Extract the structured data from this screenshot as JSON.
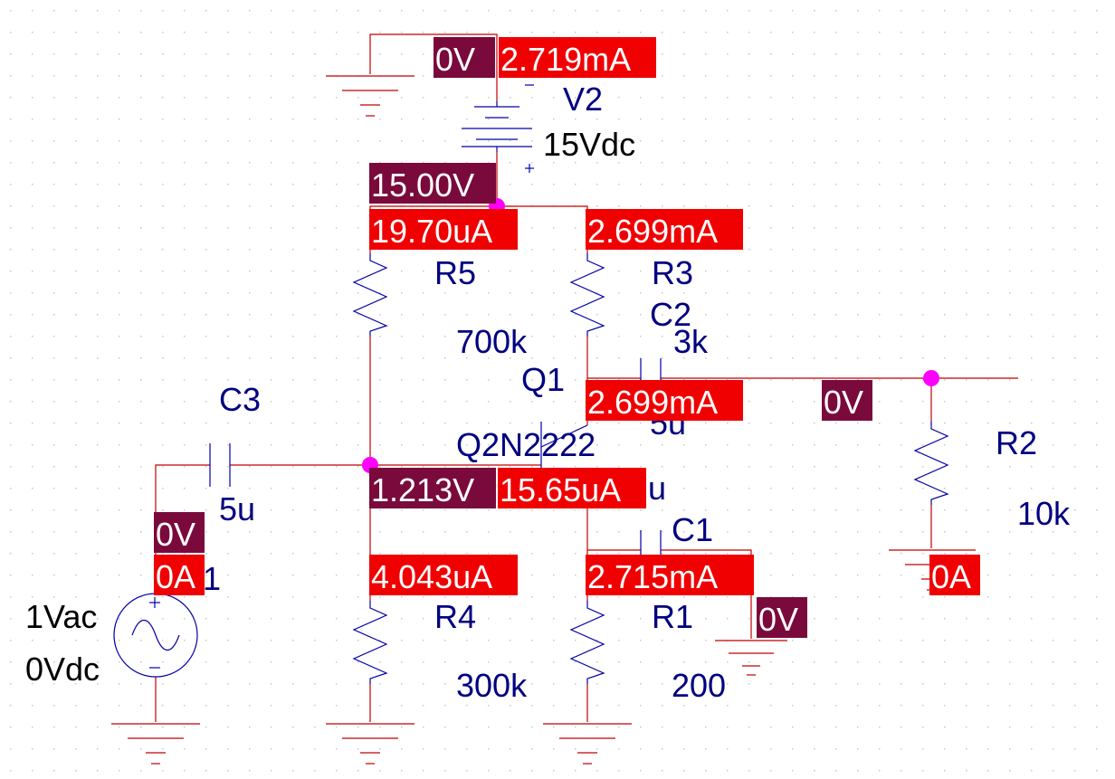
{
  "components": {
    "V2": {
      "name": "V2",
      "value": "15Vdc"
    },
    "R5": {
      "name": "R5",
      "value": "700k"
    },
    "R3": {
      "name": "R3",
      "value": "3k"
    },
    "R4": {
      "name": "R4",
      "value": "300k"
    },
    "R1": {
      "name": "R1",
      "value": "200"
    },
    "R2": {
      "name": "R2",
      "value": "10k"
    },
    "C3": {
      "name": "C3",
      "value": "5u"
    },
    "C2": {
      "name": "C2",
      "value": "5u"
    },
    "C1": {
      "name": "C1",
      "value": "u"
    },
    "Q1": {
      "name": "Q1",
      "model": "Q2N2222"
    },
    "V1": {
      "ac": "1Vac",
      "dc": "0Vdc",
      "ref_fragment": "1"
    }
  },
  "probes": {
    "v_top_ground": "0V",
    "i_v2": "2.719mA",
    "v_supply": "15.00V",
    "i_r5": "19.70uA",
    "i_r3": "2.699mA",
    "i_collector": "2.699mA",
    "v_output": "0V",
    "v_base": "1.213V",
    "i_base": "15.65uA",
    "v_source": "0V",
    "i_source": "0A",
    "i_r4": "4.043uA",
    "i_emitter": "2.715mA",
    "v_c1_ground": "0V",
    "i_r2": "0A"
  },
  "symbols": {
    "plus": "+",
    "minus": "-"
  }
}
